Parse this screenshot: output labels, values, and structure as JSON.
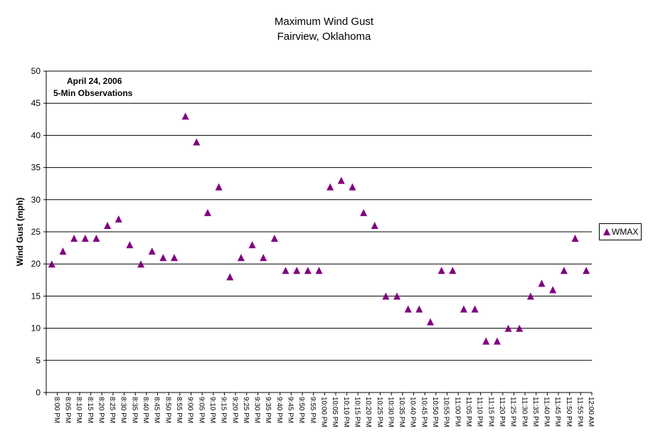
{
  "chart_data": {
    "type": "scatter",
    "title": "Maximum Wind Gust",
    "subtitle": "Fairview, Oklahoma",
    "annotation_lines": [
      "April 24, 2006",
      "5-Min Observations"
    ],
    "ylabel": "Wind Gust (mph)",
    "xlabel": "",
    "ylim": [
      0,
      50
    ],
    "y_ticks": [
      0,
      5,
      10,
      15,
      20,
      25,
      30,
      35,
      40,
      45,
      50
    ],
    "grid": "horizontal",
    "legend_position": "right",
    "marker_color": "#800080",
    "categories": [
      "8:00 PM",
      "8:05 PM",
      "8:10 PM",
      "8:15 PM",
      "8:20 PM",
      "8:25 PM",
      "8:30 PM",
      "8:35 PM",
      "8:40 PM",
      "8:45 PM",
      "8:50 PM",
      "8:55 PM",
      "9:00 PM",
      "9:05 PM",
      "9:10 PM",
      "9:15 PM",
      "9:20 PM",
      "9:25 PM",
      "9:30 PM",
      "9:35 PM",
      "9:40 PM",
      "9:45 PM",
      "9:50 PM",
      "9:55 PM",
      "10:00 PM",
      "10:05 PM",
      "10:10 PM",
      "10:15 PM",
      "10:20 PM",
      "10:25 PM",
      "10:30 PM",
      "10:35 PM",
      "10:40 PM",
      "10:45 PM",
      "10:50 PM",
      "10:55 PM",
      "11:00 PM",
      "11:05 PM",
      "11:10 PM",
      "11:15 PM",
      "11:20 PM",
      "11:25 PM",
      "11:30 PM",
      "11:35 PM",
      "11:40 PM",
      "11:45 PM",
      "11:50 PM",
      "11:55 PM",
      "12:00 AM"
    ],
    "series": [
      {
        "name": "WMAX",
        "values": [
          20,
          22,
          24,
          24,
          24,
          26,
          27,
          23,
          20,
          22,
          21,
          21,
          43,
          39,
          28,
          32,
          18,
          21,
          23,
          21,
          24,
          19,
          19,
          19,
          19,
          32,
          33,
          32,
          28,
          26,
          15,
          15,
          13,
          13,
          11,
          19,
          19,
          13,
          13,
          8,
          8,
          10,
          10,
          15,
          17,
          16,
          19,
          24,
          19
        ]
      }
    ]
  }
}
